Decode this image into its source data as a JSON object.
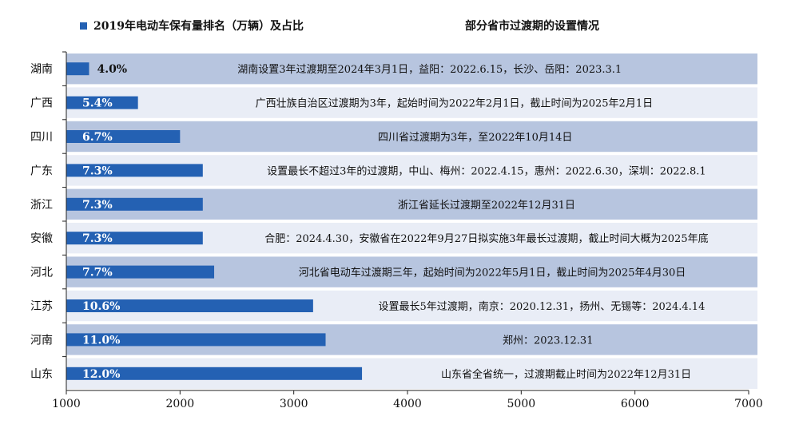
{
  "legend": {
    "label": "2019年电动车保有量排名（万辆）及占比",
    "color": "#2461b3"
  },
  "right_title": "部分省市过渡期的设置情况",
  "chart_data": {
    "type": "bar",
    "orientation": "horizontal",
    "categories": [
      "湖南",
      "广西",
      "四川",
      "广东",
      "浙江",
      "安徽",
      "河北",
      "江苏",
      "河南",
      "山东"
    ],
    "values": [
      1200,
      1630,
      2000,
      2200,
      2200,
      2200,
      2300,
      3170,
      3280,
      3600
    ],
    "data_labels": [
      "4.0%",
      "5.4%",
      "6.7%",
      "7.3%",
      "7.3%",
      "7.3%",
      "7.7%",
      "10.6%",
      "11.0%",
      "12.0%"
    ],
    "annotations": [
      "湖南设置3年过渡期至2024年3月1日，益阳：2022.6.15，长沙、岳阳：2023.3.1",
      "广西壮族自治区过渡期为3年，起始时间为2022年2月1日，截止时间为2025年2月1日",
      "四川省过渡期为3年，至2022年10月14日",
      "设置最长不超过3年的过渡期，中山、梅州：2022.4.15，惠州：2022.6.30，深圳：2022.8.1",
      "浙江省延长过渡期至2022年12月31日",
      "合肥：2024.4.30，安徽省在2022年9月27日拟实施3年最长过渡期，截止时间大概为2025年底",
      "河北省电动车过渡期三年，起始时间为2022年5月1日，截止时间为2025年4月30日",
      "设置最长5年过渡期，南京：2020.12.31，扬州、无锡等：2024.4.14",
      "郑州：2023.12.31",
      "山东省全省统一，过渡期截止时间为2022年12月31日"
    ],
    "xlim": [
      1000,
      7000
    ],
    "xticks": [
      "1000",
      "2000",
      "3000",
      "4000",
      "5000",
      "6000",
      "7000"
    ],
    "colors": {
      "bar": "#2461b3",
      "band_dark": "#b7c5df",
      "band_light": "#e9edf6"
    }
  }
}
